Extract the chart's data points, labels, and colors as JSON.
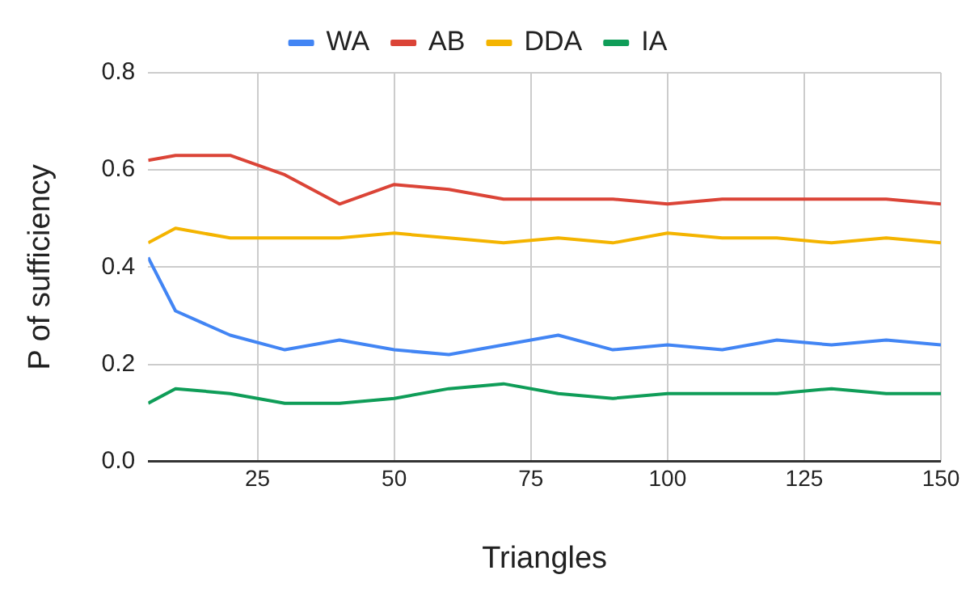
{
  "chart_data": {
    "type": "line",
    "xlabel": "Triangles",
    "ylabel": "P of sufficiency",
    "x": [
      5,
      10,
      20,
      30,
      40,
      50,
      60,
      70,
      80,
      90,
      100,
      110,
      120,
      130,
      140,
      150
    ],
    "xlim": [
      5,
      150
    ],
    "xticks": [
      25,
      50,
      75,
      100,
      125,
      150
    ],
    "ylim": [
      0,
      0.8
    ],
    "yticks": [
      {
        "value": 0,
        "label": "0.0"
      },
      0.2,
      0.4,
      0.6,
      0.8
    ],
    "grid": true,
    "legend": "top",
    "marker": "none",
    "line_style": "solid",
    "series": [
      {
        "name": "WA",
        "color": "#4285f4",
        "values": [
          0.42,
          0.31,
          0.26,
          0.23,
          0.25,
          0.23,
          0.22,
          0.24,
          0.26,
          0.23,
          0.24,
          0.23,
          0.25,
          0.24,
          0.25,
          0.24
        ]
      },
      {
        "name": "AB",
        "color": "#db4437",
        "values": [
          0.62,
          0.63,
          0.63,
          0.59,
          0.53,
          0.57,
          0.56,
          0.54,
          0.54,
          0.54,
          0.53,
          0.54,
          0.54,
          0.54,
          0.54,
          0.53
        ]
      },
      {
        "name": "DDA",
        "color": "#f4b400",
        "values": [
          0.45,
          0.48,
          0.46,
          0.46,
          0.46,
          0.47,
          0.46,
          0.45,
          0.46,
          0.45,
          0.47,
          0.46,
          0.46,
          0.45,
          0.46,
          0.45
        ]
      },
      {
        "name": "IA",
        "color": "#0f9d58",
        "values": [
          0.12,
          0.15,
          0.14,
          0.12,
          0.12,
          0.13,
          0.15,
          0.16,
          0.14,
          0.13,
          0.14,
          0.14,
          0.14,
          0.15,
          0.14,
          0.14
        ]
      }
    ]
  }
}
